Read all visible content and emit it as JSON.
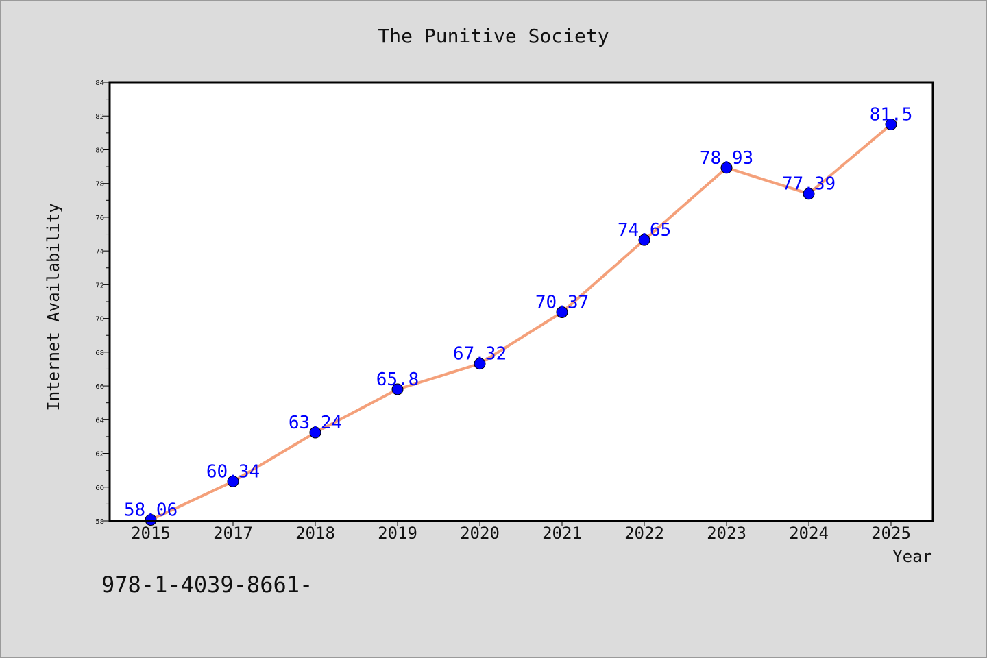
{
  "chart_data": {
    "type": "line",
    "title": "The Punitive Society",
    "xlabel": "Year",
    "ylabel": "Internet Availability",
    "x": [
      "2015",
      "2017",
      "2018",
      "2019",
      "2020",
      "2021",
      "2022",
      "2023",
      "2024",
      "2025"
    ],
    "values": [
      58.06,
      60.34,
      63.24,
      65.8,
      67.32,
      70.37,
      74.65,
      78.93,
      77.39,
      81.5
    ],
    "data_labels": [
      "58.06",
      "60.34",
      "63.24",
      "65.8",
      "67.32",
      "70.37",
      "74.65",
      "78.93",
      "77.39",
      "81.5"
    ],
    "ylim": [
      58,
      84
    ],
    "yticks": [
      58,
      60,
      62,
      64,
      66,
      68,
      70,
      72,
      74,
      76,
      78,
      80,
      82,
      84
    ],
    "grid": false,
    "legend": "none",
    "line_color": "#f4a07a",
    "marker_color": "#0000ff",
    "label_color": "#0000ff"
  },
  "footer": {
    "text": "978-1-4039-8661-"
  }
}
